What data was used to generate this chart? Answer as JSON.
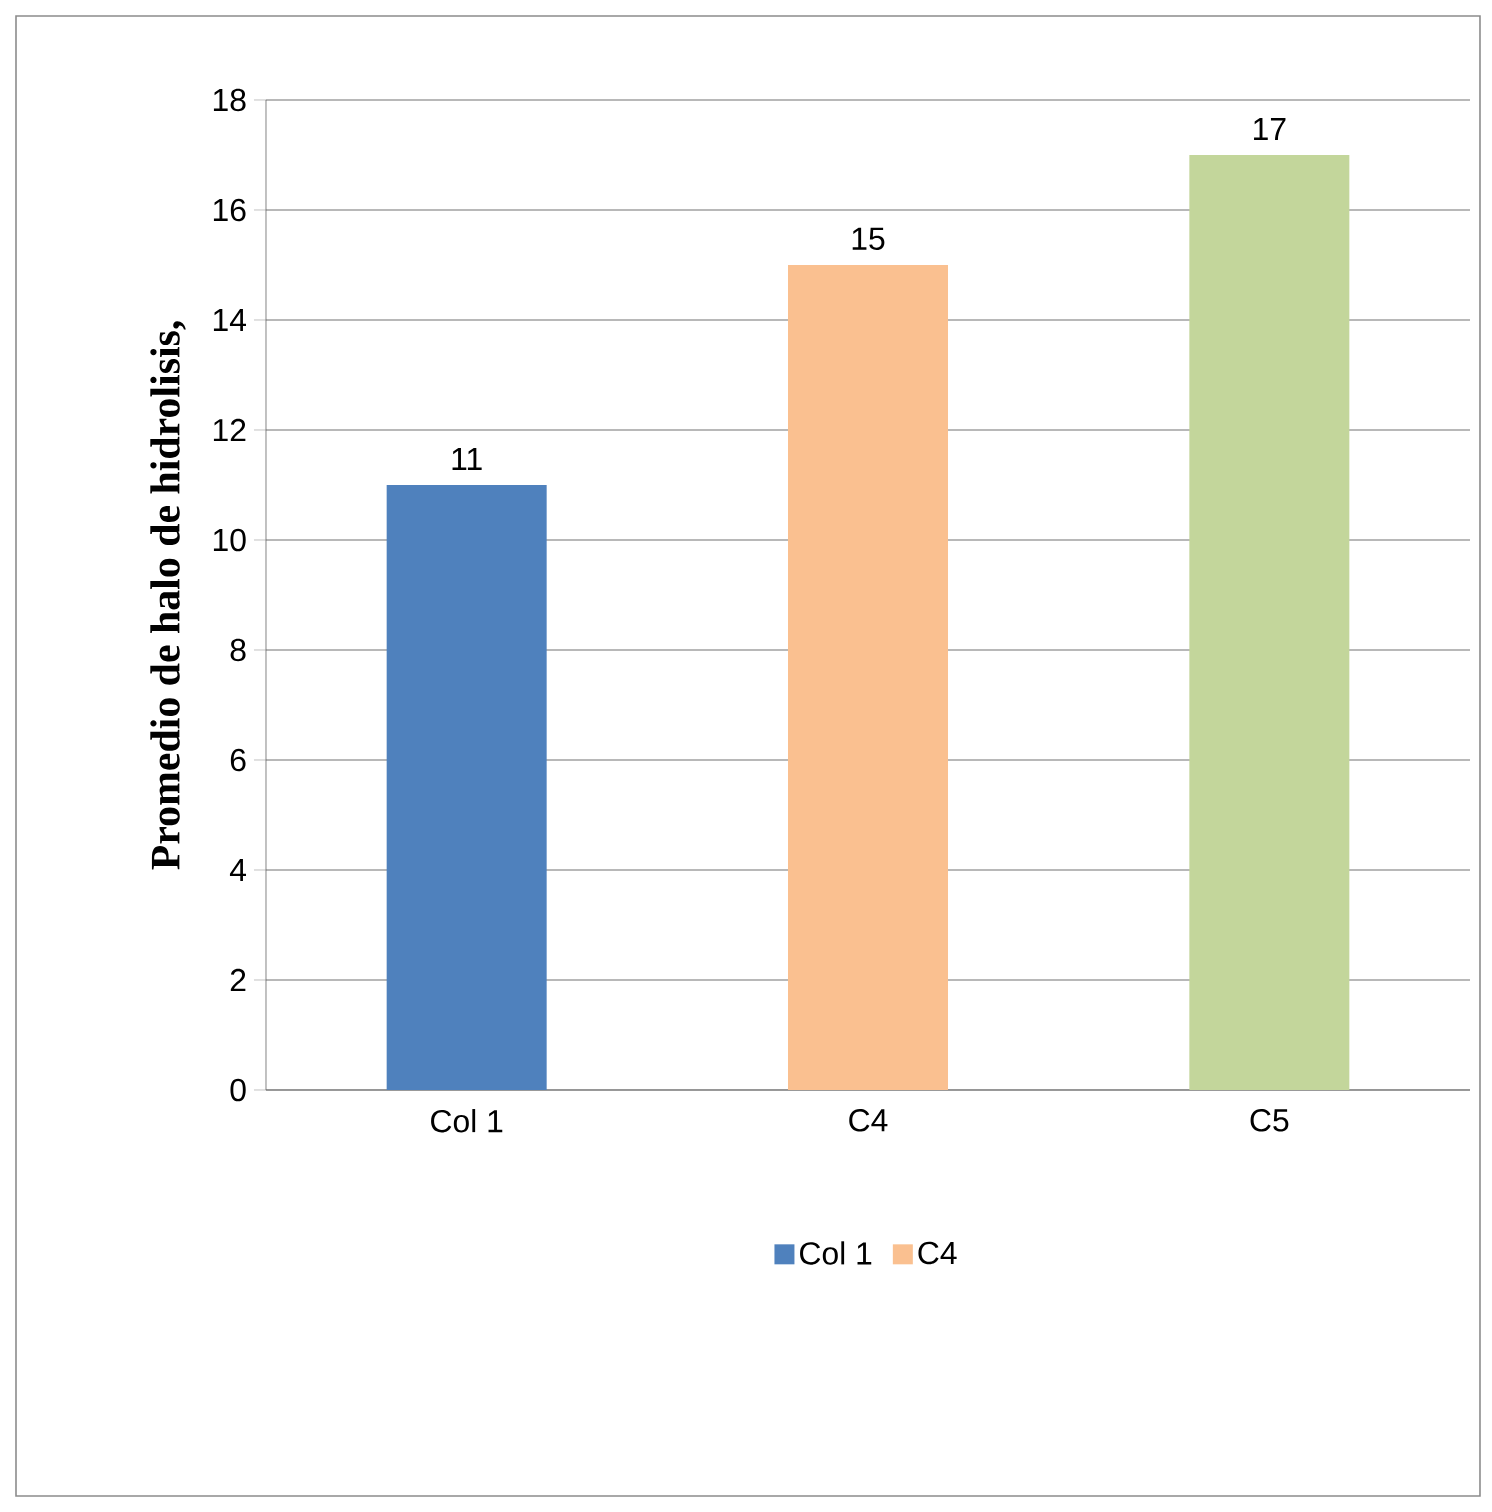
{
  "chart_data": {
    "type": "bar",
    "ylabel": "Promedio de halo de hidrolisis,",
    "categories": [
      "Col 1",
      "C4",
      "C5"
    ],
    "series": [
      {
        "name": "Col 1",
        "color": "#4f81bd",
        "values": [
          11,
          null,
          null
        ]
      },
      {
        "name": "C4",
        "color": "#fac090",
        "values": [
          null,
          15,
          null
        ]
      },
      {
        "color": "#c3d69b",
        "values": [
          null,
          null,
          17
        ]
      }
    ],
    "ylim": [
      0,
      18
    ],
    "yticks": [
      0,
      2,
      4,
      6,
      8,
      10,
      12,
      14,
      16,
      18
    ],
    "grid": "y",
    "legend": "bottom",
    "data_labels": true
  }
}
